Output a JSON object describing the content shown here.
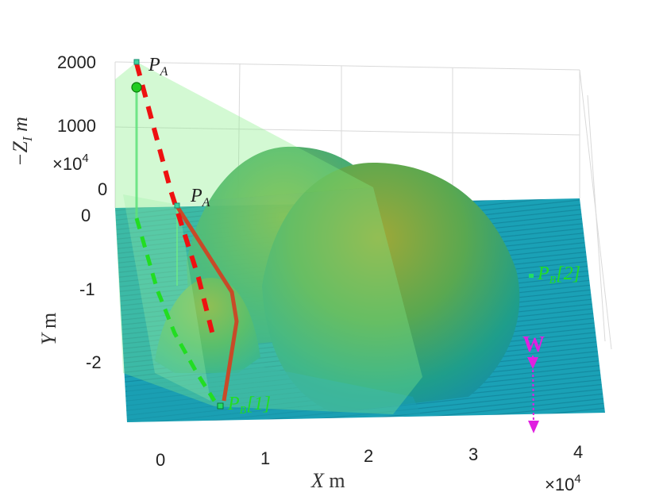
{
  "chart_data": {
    "type": "surface3d",
    "xlabel": "X m",
    "ylabel": "Y m",
    "zlabel": "−Z_I m",
    "x_ticks": [
      "0",
      "1",
      "2",
      "3",
      "4"
    ],
    "x_exponent": "×10^4",
    "y_ticks": [
      "0",
      "-1",
      "-2"
    ],
    "y_exponent": "×10^4",
    "z_ticks": [
      "0",
      "1000",
      "2000"
    ],
    "xlim": [
      -0.4,
      4.3
    ],
    "ylim": [
      -2.8,
      0.1
    ],
    "zlim": [
      0,
      2100
    ],
    "colors": {
      "ground": "#1a9fb5",
      "terrain_top": "#a8a830",
      "terrain_mid": "#2fa07a",
      "cone": "#7de07d",
      "path_dashed_red": "#e81010",
      "path_solid": "#c0482a",
      "path_dashed_green": "#22dd22",
      "wind": "#e020e0",
      "point_marker": "#3fd3a0"
    },
    "annotations": {
      "pa_top": "P_A",
      "pa_ground": "P_A",
      "pb1": "P_B[1]",
      "pb2": "P_B[2]",
      "wind": "W"
    },
    "points": {
      "PA_top": {
        "x": -0.22,
        "y": -0.02,
        "z": 2000
      },
      "PA_ground": {
        "x": 0.15,
        "y": 0.1,
        "z": 0
      },
      "PB1": {
        "x": 0.58,
        "y": -2.6,
        "z": 0
      },
      "PB2": {
        "x": 3.5,
        "y": -0.85,
        "z": 0
      }
    }
  }
}
